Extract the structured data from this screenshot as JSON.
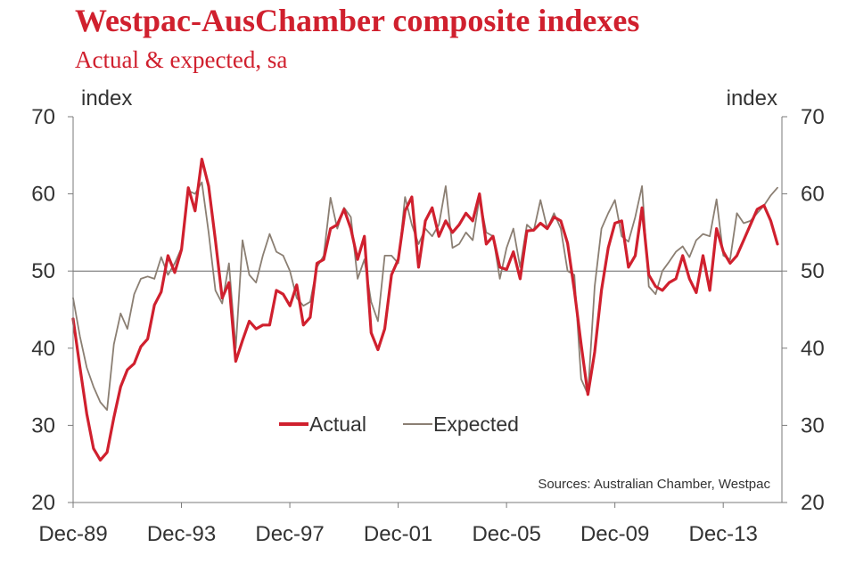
{
  "chart_data": {
    "type": "line",
    "title": "Westpac-AusChamber composite indexes",
    "subtitle": "Actual & expected, sa",
    "ylabel_left": "index",
    "ylabel_right": "index",
    "ylim": [
      20,
      70
    ],
    "yticks": [
      20,
      30,
      40,
      50,
      60,
      70
    ],
    "xlim": [
      1989.917,
      2016.083
    ],
    "xticks": [
      {
        "label": "Dec-89",
        "x": 1989.917
      },
      {
        "label": "Dec-93",
        "x": 1993.917
      },
      {
        "label": "Dec-97",
        "x": 1997.917
      },
      {
        "label": "Dec-01",
        "x": 2001.917
      },
      {
        "label": "Dec-05",
        "x": 2005.917
      },
      {
        "label": "Dec-09",
        "x": 2009.917
      },
      {
        "label": "Dec-13",
        "x": 2013.917
      }
    ],
    "reference_line": 50,
    "legend": {
      "position": "lower-center",
      "entries": [
        "Actual",
        "Expected"
      ]
    },
    "source": "Sources: Australian Chamber, Westpac",
    "series": [
      {
        "name": "Actual",
        "color": "#d0202e",
        "x": [
          1989.917,
          1990.17,
          1990.42,
          1990.67,
          1990.92,
          1991.17,
          1991.42,
          1991.67,
          1991.92,
          1992.17,
          1992.42,
          1992.67,
          1992.92,
          1993.17,
          1993.42,
          1993.67,
          1993.92,
          1994.17,
          1994.42,
          1994.67,
          1994.92,
          1995.17,
          1995.42,
          1995.67,
          1995.92,
          1996.17,
          1996.42,
          1996.67,
          1996.92,
          1997.17,
          1997.42,
          1997.67,
          1997.92,
          1998.17,
          1998.42,
          1998.67,
          1998.92,
          1999.17,
          1999.42,
          1999.67,
          1999.92,
          2000.17,
          2000.42,
          2000.67,
          2000.92,
          2001.17,
          2001.42,
          2001.67,
          2001.92,
          2002.17,
          2002.42,
          2002.67,
          2002.92,
          2003.17,
          2003.42,
          2003.67,
          2003.92,
          2004.17,
          2004.42,
          2004.67,
          2004.92,
          2005.17,
          2005.42,
          2005.67,
          2005.92,
          2006.17,
          2006.42,
          2006.67,
          2006.92,
          2007.17,
          2007.42,
          2007.67,
          2007.92,
          2008.17,
          2008.42,
          2008.67,
          2008.92,
          2009.17,
          2009.42,
          2009.67,
          2009.92,
          2010.17,
          2010.42,
          2010.67,
          2010.92,
          2011.17,
          2011.42,
          2011.67,
          2011.92,
          2012.17,
          2012.42,
          2012.67,
          2012.92,
          2013.17,
          2013.42,
          2013.67,
          2013.92,
          2014.17,
          2014.42,
          2014.67,
          2014.92,
          2015.17,
          2015.42,
          2015.67,
          2015.92
        ],
        "values": [
          43.8,
          37.5,
          31.5,
          27.0,
          25.5,
          26.5,
          31.0,
          35.0,
          37.2,
          38.0,
          40.2,
          41.2,
          45.6,
          47.3,
          52.0,
          49.8,
          52.8,
          60.8,
          57.8,
          64.5,
          61.0,
          54.0,
          46.5,
          48.5,
          38.3,
          41.0,
          43.5,
          42.5,
          43.0,
          43.0,
          47.5,
          47.0,
          45.5,
          48.2,
          43.0,
          44.0,
          51.0,
          51.5,
          55.5,
          56.0,
          58.0,
          55.5,
          51.5,
          54.5,
          42.0,
          39.8,
          42.5,
          49.5,
          51.5,
          57.8,
          59.6,
          50.5,
          56.5,
          58.2,
          54.5,
          56.5,
          55.0,
          56.0,
          57.5,
          56.5,
          60.0,
          53.5,
          54.5,
          50.5,
          50.2,
          52.5,
          49.0,
          55.2,
          55.3,
          56.2,
          55.5,
          57.0,
          56.5,
          53.6,
          47.5,
          40.5,
          34.0,
          39.5,
          47.5,
          53.0,
          56.2,
          56.5,
          50.5,
          52.0,
          58.2,
          49.5,
          48.0,
          47.5,
          48.5,
          49.0,
          52.0,
          49.0,
          47.2,
          52.0,
          47.5,
          55.5,
          52.5,
          51.0,
          52.0,
          54.0,
          56.0,
          58.0,
          58.5,
          56.5,
          53.5
        ]
      },
      {
        "name": "Expected",
        "color": "#8b7f73",
        "x": [
          1989.917,
          1990.17,
          1990.42,
          1990.67,
          1990.92,
          1991.17,
          1991.42,
          1991.67,
          1991.92,
          1992.17,
          1992.42,
          1992.67,
          1992.92,
          1993.17,
          1993.42,
          1993.67,
          1993.92,
          1994.17,
          1994.42,
          1994.67,
          1994.92,
          1995.17,
          1995.42,
          1995.67,
          1995.92,
          1996.17,
          1996.42,
          1996.67,
          1996.92,
          1997.17,
          1997.42,
          1997.67,
          1997.92,
          1998.17,
          1998.42,
          1998.67,
          1998.92,
          1999.17,
          1999.42,
          1999.67,
          1999.92,
          2000.17,
          2000.42,
          2000.67,
          2000.92,
          2001.17,
          2001.42,
          2001.67,
          2001.92,
          2002.17,
          2002.42,
          2002.67,
          2002.92,
          2003.17,
          2003.42,
          2003.67,
          2003.92,
          2004.17,
          2004.42,
          2004.67,
          2004.92,
          2005.17,
          2005.42,
          2005.67,
          2005.92,
          2006.17,
          2006.42,
          2006.67,
          2006.92,
          2007.17,
          2007.42,
          2007.67,
          2007.92,
          2008.17,
          2008.42,
          2008.67,
          2008.92,
          2009.17,
          2009.42,
          2009.67,
          2009.92,
          2010.17,
          2010.42,
          2010.67,
          2010.92,
          2011.17,
          2011.42,
          2011.67,
          2011.92,
          2012.17,
          2012.42,
          2012.67,
          2012.92,
          2013.17,
          2013.42,
          2013.67,
          2013.92,
          2014.17,
          2014.42,
          2014.67,
          2014.92,
          2015.17,
          2015.42,
          2015.67,
          2015.92
        ],
        "values": [
          46.5,
          41.5,
          37.5,
          35.0,
          33.0,
          32.0,
          40.5,
          44.5,
          42.5,
          47.0,
          49.0,
          49.3,
          49.0,
          51.8,
          49.5,
          51.0,
          53.0,
          60.4,
          60.0,
          61.5,
          55.0,
          47.5,
          45.8,
          51.0,
          40.0,
          54.0,
          49.5,
          48.5,
          52.0,
          54.8,
          52.5,
          52.0,
          50.0,
          46.5,
          45.5,
          46.0,
          50.5,
          52.0,
          59.5,
          55.5,
          58.2,
          57.0,
          49.0,
          51.5,
          46.0,
          43.5,
          52.0,
          52.0,
          51.0,
          59.6,
          56.0,
          53.5,
          55.5,
          54.5,
          56.0,
          61.0,
          53.0,
          53.5,
          55.0,
          54.0,
          59.5,
          55.0,
          54.5,
          49.0,
          53.0,
          55.5,
          50.5,
          56.0,
          55.2,
          59.2,
          55.5,
          57.5,
          55.5,
          50.0,
          49.5,
          36.0,
          34.0,
          48.0,
          55.5,
          57.5,
          59.2,
          54.5,
          53.8,
          57.0,
          61.0,
          48.0,
          47.0,
          50.0,
          51.2,
          52.5,
          53.2,
          51.8,
          54.0,
          54.8,
          54.5,
          59.3,
          52.0,
          51.5,
          57.5,
          56.2,
          56.5,
          57.5,
          58.5,
          59.8,
          60.8
        ]
      }
    ]
  }
}
